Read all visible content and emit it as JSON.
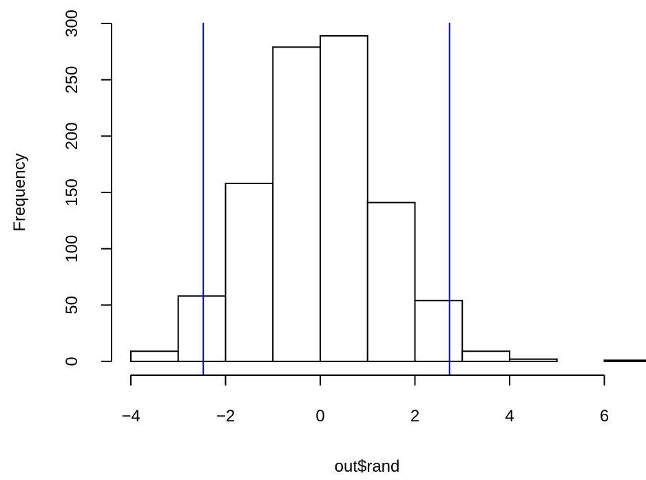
{
  "chart_data": {
    "type": "bar",
    "title": "",
    "xlabel": "out$rand",
    "ylabel": "Frequency",
    "bins": [
      {
        "from": -4,
        "to": -3,
        "count": 9
      },
      {
        "from": -3,
        "to": -2,
        "count": 58
      },
      {
        "from": -2,
        "to": -1,
        "count": 158
      },
      {
        "from": -1,
        "to": 0,
        "count": 279
      },
      {
        "from": 0,
        "to": 1,
        "count": 289
      },
      {
        "from": 1,
        "to": 2,
        "count": 141
      },
      {
        "from": 2,
        "to": 3,
        "count": 54
      },
      {
        "from": 3,
        "to": 4,
        "count": 9
      },
      {
        "from": 4,
        "to": 5,
        "count": 2
      },
      {
        "from": 5,
        "to": 6,
        "count": 0
      },
      {
        "from": 6,
        "to": 7,
        "count": 1
      }
    ],
    "xlim": [
      -4,
      7
    ],
    "ylim": [
      0,
      300
    ],
    "xticks": [
      -4,
      -2,
      0,
      2,
      4,
      6
    ],
    "xtick_labels": [
      "−4",
      "−2",
      "0",
      "2",
      "4",
      "6"
    ],
    "yticks": [
      0,
      50,
      100,
      150,
      200,
      250,
      300
    ],
    "ytick_labels": [
      "0",
      "50",
      "100",
      "150",
      "200",
      "250",
      "300"
    ],
    "reference_lines": [
      {
        "x": -2.47,
        "color": "#0000ff"
      },
      {
        "x": 2.73,
        "color": "#0000ff"
      }
    ],
    "grid": false,
    "legend": "none"
  }
}
